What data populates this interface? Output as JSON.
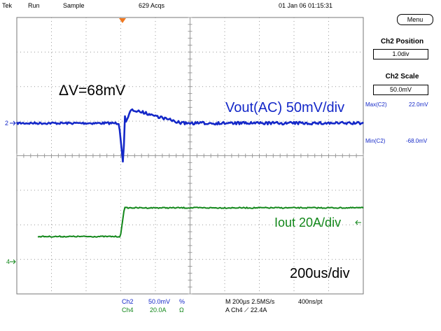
{
  "topbar": {
    "brand": "Tek",
    "run_state": "Run",
    "acq_mode": "Sample",
    "acq_count": "629 Acqs",
    "datetime": "01 Jan 06 01:15:31"
  },
  "side_panel": {
    "menu_label": "Menu",
    "ch2_position_title": "Ch2 Position",
    "ch2_position_value": "1.0div",
    "ch2_scale_title": "Ch2 Scale",
    "ch2_scale_value": "50.0mV",
    "max_label": "Max(C2)",
    "max_value": "22.0mV",
    "min_label": "Min(C2)",
    "min_value": "-68.0mV"
  },
  "annotations": {
    "delta_v": "ΔV=68mV",
    "vout": "Vout(AC) 50mV/div",
    "iout": "Iout 20A/div",
    "timebase": "200us/div"
  },
  "markers": {
    "ch2": "2",
    "ch4": "4"
  },
  "bottom": {
    "ch2_name": "Ch2",
    "ch2_scale": "50.0mV",
    "ch2_coupling": "%",
    "ch4_name": "Ch4",
    "ch4_scale": "20.0A",
    "ch4_coupling": "Ω",
    "horizontal": "M 200µs 2.5MS/s",
    "record": "400ns/pt",
    "trigger": "A  Ch4  ⟋  22.4A"
  },
  "colors": {
    "ch2_trace": "#1428c8",
    "ch4_trace": "#12871a",
    "trigger_marker": "#f07820",
    "graticule": "#999999"
  }
}
